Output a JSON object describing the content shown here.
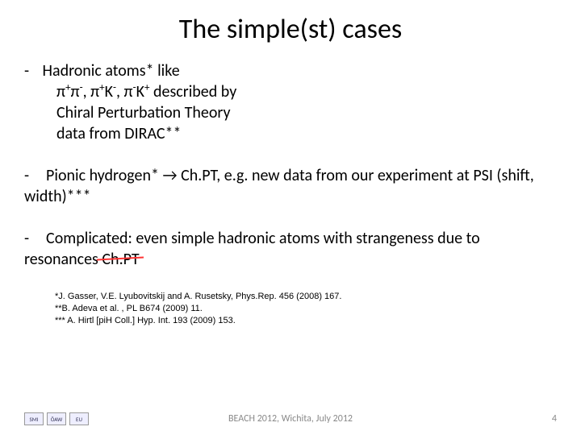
{
  "title": "The simple(st) cases",
  "bullets": {
    "b1": {
      "lead": "Hadronic atoms* like",
      "l2a": "π",
      "l2b": "π",
      "l2c": ", π",
      "l2d": "K",
      "l2e": ", π",
      "l2f": "K",
      "l2g": " described by",
      "l3": "Chiral Perturbation Theory",
      "l4": "data from DIRAC**"
    },
    "b2": "Pionic hydrogen* → Ch.PT, e.g. new data from our experiment at PSI (shift, width)***",
    "b3a": "Complicated: even simple hadronic atoms with strangeness due to resonances ",
    "b3b": "Ch.PT"
  },
  "refs": {
    "r1": "*J. Gasser, V.E. Lyubovitskij and A. Rusetsky, Phys.Rep. 456 (2008) 167.",
    "r2": "**B. Adeva et al. , PL B674 (2009) 11.",
    "r3": "*** A. Hirtl [piH Coll.] Hyp. Int. 193 (2009) 153."
  },
  "footer": {
    "center": "BEACH 2012, Wichita, July 2012",
    "page": "4"
  },
  "logos": [
    "SMI",
    "ÖAW",
    "EU"
  ]
}
